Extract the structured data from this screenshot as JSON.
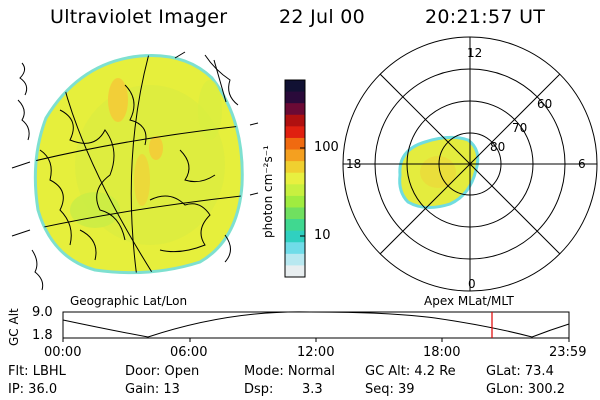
{
  "header": {
    "title": "Ultraviolet Imager",
    "date": "22 Jul 00",
    "time": "20:21:57 UT"
  },
  "geo_panel": {
    "label": "Geographic Lat/Lon"
  },
  "colorbar": {
    "unit_label": "photon cm⁻²s⁻¹",
    "tick_100": "100",
    "tick_10": "10",
    "colors": [
      "#111133",
      "#2a0a3a",
      "#6b0a35",
      "#b01010",
      "#e02010",
      "#f06a10",
      "#f4a020",
      "#f0d030",
      "#e8f040",
      "#c8f040",
      "#a0ec40",
      "#70e060",
      "#40d890",
      "#30d0c0",
      "#70dce8",
      "#b8e8f0",
      "#e8eef0"
    ]
  },
  "polar_panel": {
    "label": "Apex MLat/MLT",
    "mlt_12": "12",
    "mlt_18": "18",
    "mlt_6": "6",
    "mlt_0": "0",
    "lat_60": "60",
    "lat_70": "70",
    "lat_80": "80"
  },
  "altitude_plot": {
    "ylabel": "GC Alt",
    "y_max": "9.0",
    "y_min": "1.8",
    "x_ticks": [
      "00:00",
      "06:00",
      "12:00",
      "18:00",
      "23:59"
    ],
    "marker_color": "#e00000"
  },
  "info": {
    "flt": "Flt: LBHL",
    "ip": "IP: 36.0",
    "door": "Door: Open",
    "gain": "Gain: 13",
    "mode": "Mode: Normal",
    "dsp_label": "Dsp:",
    "dsp_value": "3.3",
    "gc_alt": "GC Alt: 4.2 Re",
    "seq": "Seq: 39",
    "glat": "GLat: 73.4",
    "glon": "GLon: 300.2"
  }
}
